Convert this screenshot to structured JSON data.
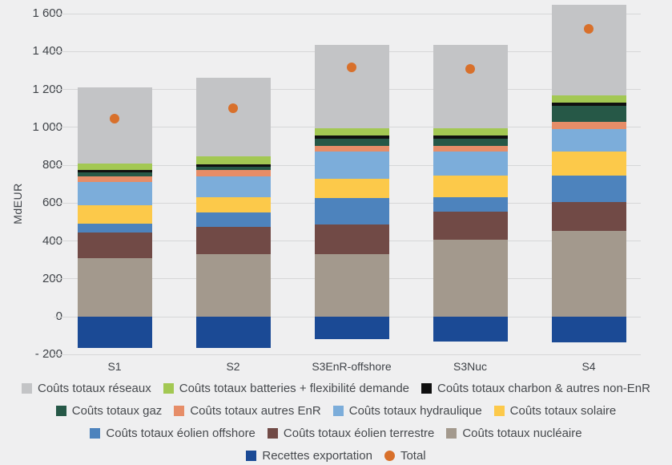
{
  "axis": {
    "y_title": "MdEUR",
    "y_ticks": [
      {
        "label": "1 600",
        "value": 1600
      },
      {
        "label": "1 400",
        "value": 1400
      },
      {
        "label": "1 200",
        "value": 1200
      },
      {
        "label": "1 000",
        "value": 1000
      },
      {
        "label": "800",
        "value": 800
      },
      {
        "label": "600",
        "value": 600
      },
      {
        "label": "400",
        "value": 400
      },
      {
        "label": "200",
        "value": 200
      },
      {
        "label": "0",
        "value": 0
      },
      {
        "label": "- 200",
        "value": -200
      }
    ]
  },
  "colors": {
    "background": "#efeff0",
    "gridline": "#d6d7d8",
    "text": "#3e4247"
  },
  "chart_data": {
    "type": "bar",
    "stacked": true,
    "title": "",
    "xlabel": "",
    "ylabel": "MdEUR",
    "ylim": [
      -200,
      1600
    ],
    "y_step": 200,
    "grid": "horizontal",
    "legend_position": "bottom",
    "categories": [
      "S1",
      "S2",
      "S3EnR-offshore",
      "S3Nuc",
      "S4"
    ],
    "series": [
      {
        "name": "Recettes exportation",
        "color": "#1b4a95",
        "marker": "square",
        "values": [
          -165,
          -165,
          -120,
          -130,
          -135
        ]
      },
      {
        "name": "Coûts totaux nucléaire",
        "color": "#a3998d",
        "marker": "square",
        "values": [
          310,
          330,
          330,
          405,
          455
        ]
      },
      {
        "name": "Coûts totaux éolien terrestre",
        "color": "#714a46",
        "marker": "square",
        "values": [
          135,
          145,
          155,
          150,
          150
        ]
      },
      {
        "name": "Coûts totaux éolien offshore",
        "color": "#4d83bd",
        "marker": "square",
        "values": [
          45,
          75,
          140,
          75,
          140
        ]
      },
      {
        "name": "Coûts totaux solaire",
        "color": "#fcc94a",
        "marker": "square",
        "values": [
          100,
          80,
          105,
          115,
          125
        ]
      },
      {
        "name": "Coûts totaux hydraulique",
        "color": "#7cadda",
        "marker": "square",
        "values": [
          120,
          110,
          140,
          125,
          120
        ]
      },
      {
        "name": "Coûts totaux autres EnR",
        "color": "#e68d68",
        "marker": "square",
        "values": [
          30,
          35,
          30,
          30,
          40
        ]
      },
      {
        "name": "Coûts totaux gaz",
        "color": "#265847",
        "marker": "square",
        "values": [
          20,
          15,
          40,
          40,
          85
        ]
      },
      {
        "name": "Coûts totaux charbon & autres non-EnR",
        "color": "#101010",
        "marker": "square",
        "values": [
          15,
          15,
          15,
          15,
          15
        ]
      },
      {
        "name": "Coûts totaux batteries + flexibilité demande",
        "color": "#a3c853",
        "marker": "square",
        "values": [
          35,
          40,
          40,
          40,
          40
        ]
      },
      {
        "name": "Coûts totaux réseaux",
        "color": "#c3c4c6",
        "marker": "square",
        "values": [
          400,
          415,
          440,
          440,
          475
        ]
      }
    ],
    "total_series": {
      "name": "Total",
      "color": "#d8702b",
      "marker": "circle",
      "values": [
        1045,
        1100,
        1315,
        1310,
        1520
      ]
    },
    "stack_tops": [
      1210,
      1260,
      1435,
      1435,
      1645
    ],
    "legend_rows": [
      [
        10,
        9,
        8
      ],
      [
        7,
        6,
        5,
        4
      ],
      [
        3,
        2,
        1
      ],
      [
        0,
        11
      ]
    ]
  }
}
